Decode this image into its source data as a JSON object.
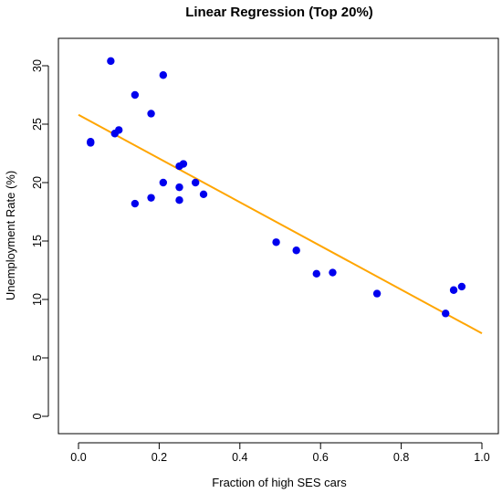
{
  "chart_data": {
    "type": "scatter",
    "title": "Linear Regression (Top 20%)",
    "xlabel": "Fraction of high SES cars",
    "ylabel": "Unemployment Rate (%)",
    "xlim": [
      0.0,
      1.0
    ],
    "ylim": [
      0,
      30
    ],
    "x_ticks": [
      "0.0",
      "0.2",
      "0.4",
      "0.6",
      "0.8",
      "1.0"
    ],
    "y_ticks": [
      "0",
      "5",
      "10",
      "15",
      "20",
      "25",
      "30"
    ],
    "grid": false,
    "legend": "none",
    "colors": {
      "points": "#0000ee",
      "line": "#ffa500"
    },
    "points": [
      {
        "x": 0.03,
        "y": 23.5
      },
      {
        "x": 0.03,
        "y": 23.4
      },
      {
        "x": 0.08,
        "y": 30.4
      },
      {
        "x": 0.09,
        "y": 24.2
      },
      {
        "x": 0.1,
        "y": 24.5
      },
      {
        "x": 0.14,
        "y": 27.5
      },
      {
        "x": 0.14,
        "y": 18.2
      },
      {
        "x": 0.18,
        "y": 25.9
      },
      {
        "x": 0.18,
        "y": 18.7
      },
      {
        "x": 0.21,
        "y": 29.2
      },
      {
        "x": 0.21,
        "y": 20.0
      },
      {
        "x": 0.25,
        "y": 21.4
      },
      {
        "x": 0.25,
        "y": 19.6
      },
      {
        "x": 0.25,
        "y": 18.5
      },
      {
        "x": 0.26,
        "y": 21.6
      },
      {
        "x": 0.29,
        "y": 20.0
      },
      {
        "x": 0.31,
        "y": 19.0
      },
      {
        "x": 0.49,
        "y": 14.9
      },
      {
        "x": 0.54,
        "y": 14.2
      },
      {
        "x": 0.59,
        "y": 12.2
      },
      {
        "x": 0.63,
        "y": 12.3
      },
      {
        "x": 0.74,
        "y": 10.5
      },
      {
        "x": 0.91,
        "y": 8.8
      },
      {
        "x": 0.93,
        "y": 10.8
      },
      {
        "x": 0.95,
        "y": 11.1
      }
    ],
    "regression_line": {
      "x": [
        0.0,
        1.0
      ],
      "y": [
        25.8,
        7.1
      ]
    }
  }
}
